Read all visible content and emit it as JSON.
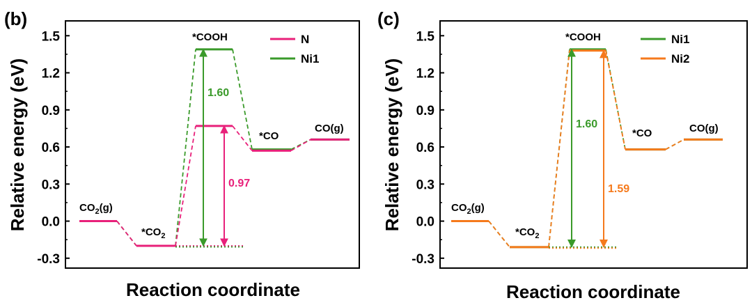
{
  "chart_data": [
    {
      "type": "line",
      "panel_label": "(b)",
      "ylabel": "Relative energy (eV)",
      "xlabel": "Reaction coordinate",
      "ylim": [
        -0.38,
        1.62
      ],
      "yticks": [
        "-0.3",
        "0.0",
        "0.3",
        "0.6",
        "0.9",
        "1.2",
        "1.5"
      ],
      "species": [
        "CO<sub>2</sub>(g)",
        "*CO<sub>2</sub>",
        "*COOH",
        "*CO",
        "CO(g)"
      ],
      "species_labels": [
        "CO",
        "2",
        "(g)",
        "*CO",
        "2",
        "*COOH",
        "*CO",
        "CO(g)"
      ],
      "series": [
        {
          "name": "N",
          "color": "#e8207a",
          "values": [
            0.0,
            -0.2,
            0.77,
            0.57,
            0.66
          ]
        },
        {
          "name": "Ni1",
          "color": "#3a9a2a",
          "values": [
            0.0,
            -0.2,
            1.39,
            0.58,
            0.66
          ]
        }
      ],
      "annotations": [
        {
          "text": "1.60",
          "series": "Ni1",
          "from": -0.2,
          "to": 1.39
        },
        {
          "text": "0.97",
          "series": "N",
          "from": -0.2,
          "to": 0.77
        }
      ],
      "legend": "top-right"
    },
    {
      "type": "line",
      "panel_label": "(c)",
      "ylabel": "Relative energy (eV)",
      "xlabel": "Reaction coordinate",
      "ylim": [
        -0.38,
        1.62
      ],
      "yticks": [
        "-0.3",
        "0.0",
        "0.3",
        "0.6",
        "0.9",
        "1.2",
        "1.5"
      ],
      "species_labels": [
        "CO",
        "2",
        "(g)",
        "*CO",
        "2",
        "*COOH",
        "*CO",
        "CO(g)"
      ],
      "series": [
        {
          "name": "Ni1",
          "color": "#3a9a2a",
          "values": [
            0.0,
            -0.21,
            1.39,
            0.58,
            0.66
          ]
        },
        {
          "name": "Ni2",
          "color": "#f57a1c",
          "values": [
            0.0,
            -0.21,
            1.38,
            0.58,
            0.66
          ]
        }
      ],
      "annotations": [
        {
          "text": "1.60",
          "series": "Ni1",
          "from": -0.21,
          "to": 1.39
        },
        {
          "text": "1.59",
          "series": "Ni2",
          "from": -0.21,
          "to": 1.38
        }
      ],
      "legend": "top-right"
    }
  ]
}
